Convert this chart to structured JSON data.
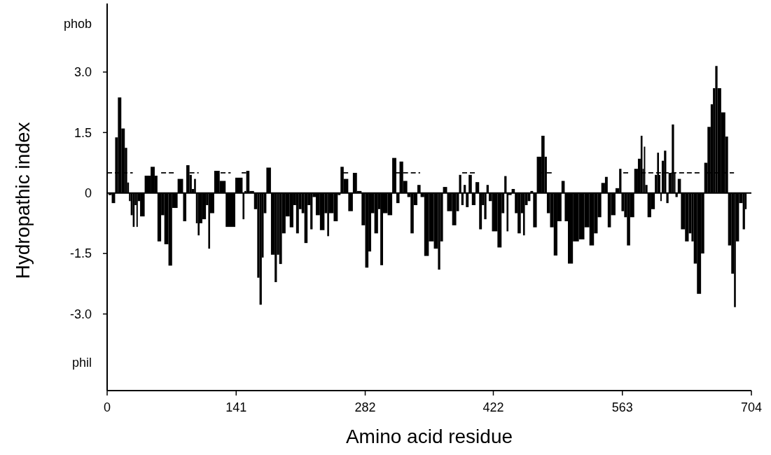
{
  "chart_data": {
    "type": "bar",
    "xlabel": "Amino acid residue",
    "ylabel": "Hydropathic index",
    "xlim": [
      0,
      704
    ],
    "xticks": [
      0,
      141,
      282,
      422,
      563,
      704
    ],
    "ylim": [
      -4.9,
      4.7
    ],
    "yticks": [
      {
        "value": -4.2,
        "label": "phil"
      },
      {
        "value": -3,
        "label": "-3.0"
      },
      {
        "value": -1.5,
        "label": "-1.5"
      },
      0,
      {
        "value": 1.5,
        "label": "1.5"
      },
      {
        "value": 3,
        "label": "3.0"
      },
      {
        "value": 4.2,
        "label": "phob"
      }
    ],
    "series": [
      {
        "color": "#000000",
        "x": [
          0,
          3,
          7,
          10.5,
          13,
          18,
          20.6,
          23.2,
          24.5,
          27,
          29,
          31,
          33,
          34,
          38,
          44,
          51,
          53,
          57,
          61,
          64,
          70,
          72,
          82,
          84,
          89,
          91,
          94,
          96,
          98,
          100,
          102,
          106,
          110,
          111,
          114,
          120,
          126,
          133,
          147,
          149,
          151,
          153,
          158,
          163,
          165,
          168,
          170,
          172,
          176,
          182,
          184,
          187,
          189,
          193,
          197,
          202,
          205,
          208,
          211,
          214,
          217,
          221,
          223,
          226,
          230,
          235,
          240,
          241,
          244,
          251,
          253,
          257,
          260,
          267,
          270,
          276,
          280,
          284,
          287,
          290,
          294,
          298,
          299,
          304,
          309,
          314,
          318,
          321,
          326,
          330,
          333,
          337,
          341,
          344,
          349,
          354,
          360,
          363,
          365,
          369,
          374,
          380,
          383,
          386,
          388,
          391,
          393,
          397,
          400,
          405,
          408,
          411,
          413,
          416,
          418,
          423,
          430,
          432,
          436,
          437,
          440,
          444,
          447,
          450,
          454,
          455,
          458,
          461,
          464,
          467,
          472,
          477,
          479,
          482,
          486,
          490,
          494,
          499,
          501,
          506,
          512,
          519,
          524,
          530,
          534,
          538,
          542,
          546,
          548,
          553,
          558,
          561,
          563,
          567,
          569,
          574,
          578,
          582,
          584,
          586,
          587,
          589,
          592,
          597,
          600,
          602,
          604,
          605,
          607,
          610,
          612,
          615,
          619,
          620,
          622,
          625,
          629,
          634,
          637,
          640,
          642,
          647,
          651,
          654,
          658,
          661,
          663,
          666,
          668,
          674,
          677,
          680,
          684,
          686,
          688,
          693,
          696,
          698
        ],
        "values": [
          0,
          -0.05,
          -0.25,
          1.38,
          2.37,
          1.6,
          1.12,
          0.26,
          -0.2,
          -0.55,
          -0.84,
          -0.3,
          -0.84,
          -0.2,
          -0.58,
          0.43,
          0.65,
          0.43,
          -1.2,
          -0.55,
          -1.27,
          -1.8,
          -0.37,
          0.35,
          -0.7,
          0.69,
          0.45,
          0.1,
          0.35,
          -0.75,
          -1.05,
          -0.75,
          -0.65,
          -0.3,
          -1.38,
          -0.5,
          0.55,
          0.3,
          -0.84,
          0.38,
          -0.65,
          0.05,
          0.55,
          0.05,
          -0.4,
          -2.1,
          -2.77,
          -1.6,
          -0.5,
          0.63,
          -1.53,
          -2.21,
          -1.53,
          -1.76,
          -1.0,
          -0.58,
          -0.85,
          -0.3,
          -1.0,
          -0.4,
          -0.5,
          -1.24,
          -0.3,
          -0.9,
          -0.1,
          -0.55,
          -0.92,
          -0.5,
          -1.07,
          -0.5,
          -0.7,
          -0.05,
          0.65,
          0.35,
          -0.45,
          0.5,
          0.05,
          -0.8,
          -1.85,
          -1.45,
          -0.5,
          -1.0,
          -0.4,
          -1.79,
          -0.5,
          -0.55,
          0.87,
          -0.25,
          0.78,
          0.3,
          -0.1,
          -1.0,
          -0.3,
          0.2,
          -0.1,
          -1.56,
          -1.2,
          -1.38,
          -1.9,
          -1.2,
          0.15,
          -0.45,
          -0.8,
          -0.45,
          0.45,
          -0.3,
          0.2,
          -0.35,
          0.45,
          -0.3,
          0.27,
          -0.9,
          -0.3,
          -0.65,
          0.2,
          -0.2,
          -0.95,
          -1.35,
          -0.5,
          0.42,
          -0.95,
          -0.05,
          0.1,
          -0.5,
          -1.0,
          -0.5,
          -1.05,
          -0.3,
          -0.2,
          0.05,
          -0.85,
          0.9,
          1.42,
          0.9,
          -0.5,
          -0.85,
          -1.55,
          -0.7,
          0.3,
          -0.7,
          -1.75,
          -1.2,
          -1.15,
          -0.85,
          -1.3,
          -1.0,
          -0.6,
          0.25,
          0.4,
          -0.85,
          -0.55,
          0.12,
          0.6,
          -0.45,
          -0.6,
          -1.3,
          -0.6,
          0.6,
          0.85,
          1.42,
          0.6,
          1.15,
          0.2,
          -0.6,
          -0.4,
          0.45,
          1.0,
          0.45,
          -0.2,
          0.8,
          1.05,
          -0.25,
          0.5,
          1.7,
          0.5,
          -0.1,
          0.35,
          -0.9,
          -1.2,
          -1.0,
          -1.2,
          -1.75,
          -2.5,
          -1.5,
          0.75,
          1.64,
          2.2,
          2.6,
          3.15,
          2.6,
          2.0,
          1.4,
          -1.3,
          -2.0,
          -2.83,
          -1.2,
          -0.25,
          -0.9,
          -0.4
        ]
      },
      {
        "type": "line",
        "color": "#000000",
        "line_style": "dashed",
        "x": [
          0,
          28,
          29,
          59,
          74,
          75,
          90,
          100,
          101,
          124,
          135,
          136,
          147,
          152,
          153,
          258,
          265,
          266,
          315,
          342,
          343,
          388,
          403,
          404,
          472,
          487,
          488,
          564,
          572,
          573,
          583,
          648,
          649,
          655,
          685
        ],
        "values": [
          0.5,
          0.5,
          null,
          0.5,
          0.5,
          null,
          0.5,
          0.5,
          null,
          0.5,
          0.5,
          null,
          0.5,
          0.5,
          null,
          0.5,
          0.5,
          null,
          0.5,
          0.5,
          null,
          0.5,
          0.5,
          null,
          0.5,
          0.5,
          null,
          0.5,
          0.5,
          null,
          0.5,
          0.5,
          null,
          0.5,
          0.5
        ]
      }
    ]
  }
}
